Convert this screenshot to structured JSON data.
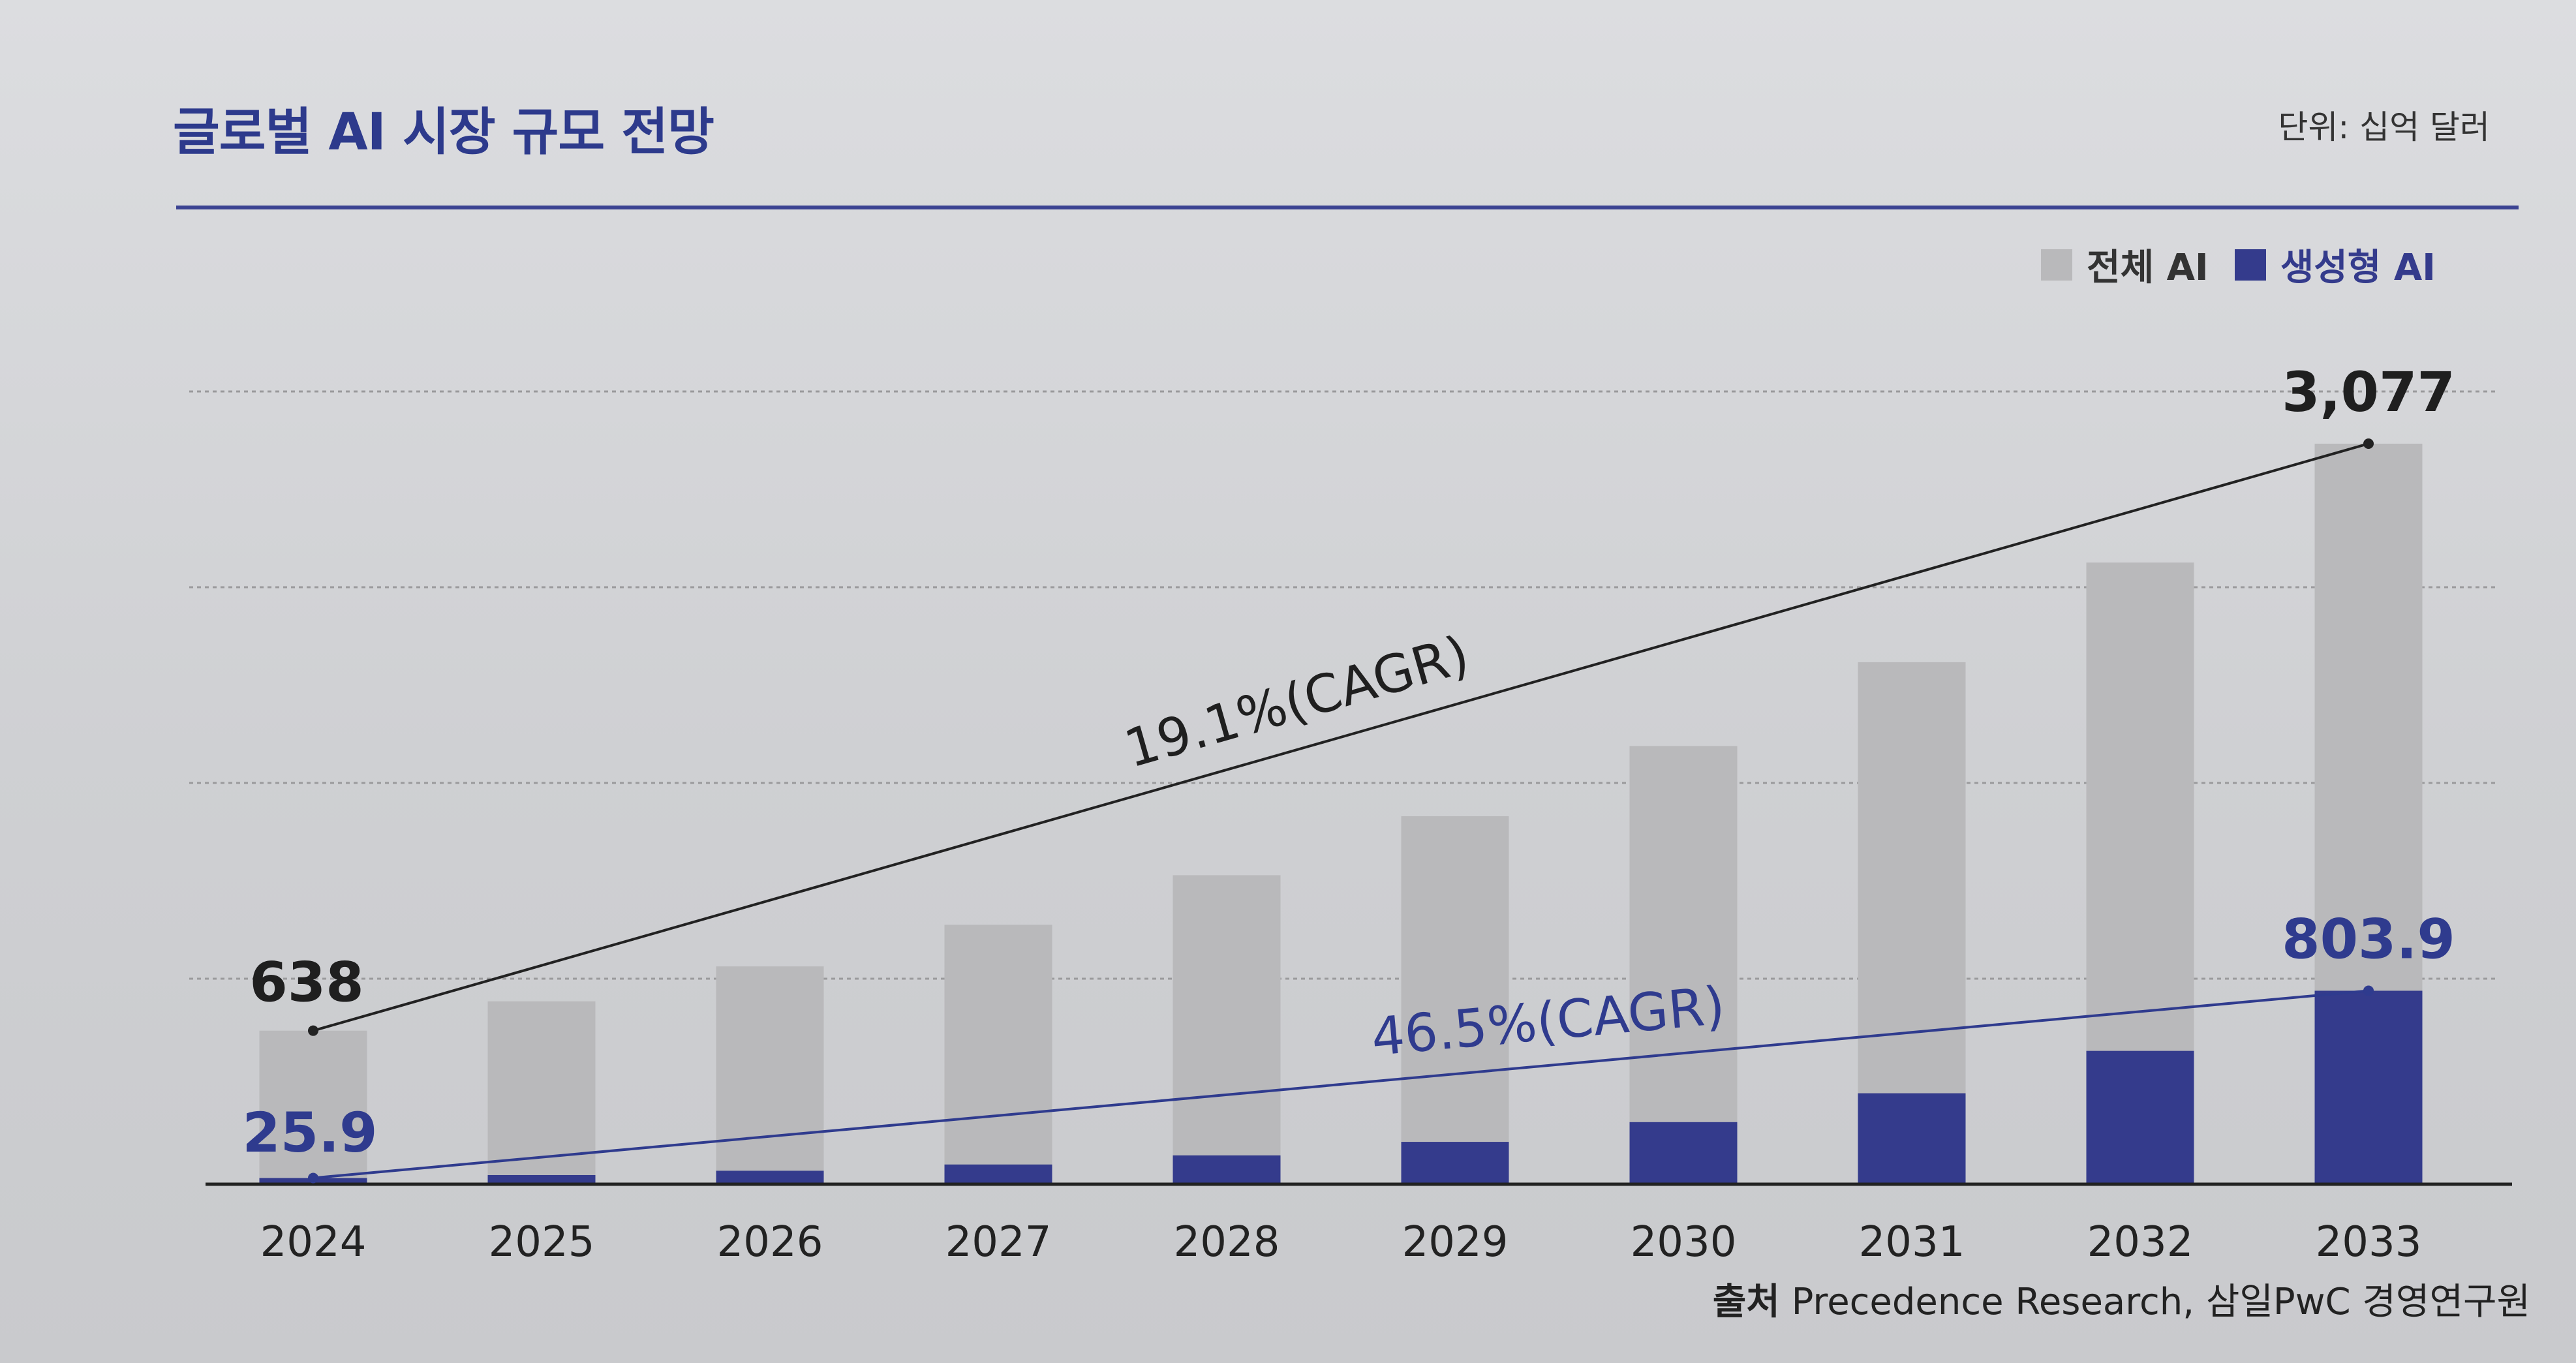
{
  "header": {
    "title": "글로벌 AI 시장 규모 전망",
    "unit": "단위: 십억 달러"
  },
  "legend": {
    "total": "전체 AI",
    "generative": "생성형 AI"
  },
  "source": {
    "label": "출처",
    "text": "Precedence Research, 삼일PwC 경영연구원"
  },
  "colors": {
    "total_bar": "#b9b9bb",
    "generative_bar": "#343b8c",
    "total_line": "#222222",
    "generative_line": "#2f3b8e"
  },
  "chart_data": {
    "type": "bar",
    "title": "글로벌 AI 시장 규모 전망",
    "categories": [
      "2024",
      "2025",
      "2026",
      "2027",
      "2028",
      "2029",
      "2030",
      "2031",
      "2032",
      "2033"
    ],
    "series": [
      {
        "name": "전체 AI",
        "values": [
          638,
          760,
          905,
          1078,
          1284,
          1529,
          1821,
          2169,
          2583,
          3077
        ]
      },
      {
        "name": "생성형 AI",
        "values": [
          25.9,
          38,
          56,
          82,
          120,
          176,
          258,
          378,
          554,
          803.9
        ]
      }
    ],
    "data_labels": {
      "total_first": "638",
      "total_last": "3,077",
      "gen_first": "25.9",
      "gen_last": "803.9"
    },
    "trend_labels": {
      "total": "19.1%(CAGR)",
      "generative": "46.5%(CAGR)"
    },
    "ylim": [
      0,
      3500
    ],
    "grid": true,
    "legend_position": "top-right"
  }
}
